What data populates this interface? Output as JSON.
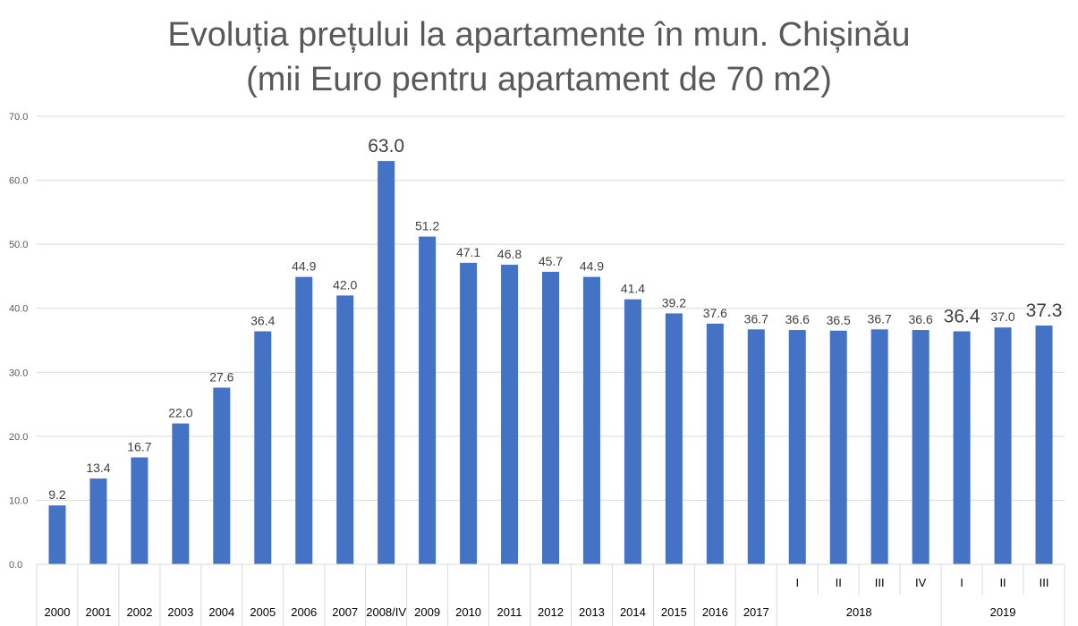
{
  "chart_data": {
    "type": "bar",
    "title_line1": "Evoluția prețului la apartamente în mun. Chișinău",
    "title_line2": "(mii Euro pentru apartament de 70 m2)",
    "ylim": [
      0,
      70
    ],
    "yticks": [
      "0.0",
      "10.0",
      "20.0",
      "30.0",
      "40.0",
      "50.0",
      "60.0",
      "70.0"
    ],
    "grid": true,
    "bar_color": "#4472C4",
    "categories": [
      "2000",
      "2001",
      "2002",
      "2003",
      "2004",
      "2005",
      "2006",
      "2007",
      "2008/IV",
      "2009",
      "2010",
      "2011",
      "2012",
      "2013",
      "2014",
      "2015",
      "2016",
      "2017",
      "I",
      "II",
      "III",
      "IV",
      "I",
      "II",
      "III"
    ],
    "values": [
      9.2,
      13.4,
      16.7,
      22.0,
      27.6,
      36.4,
      44.9,
      42.0,
      63.0,
      51.2,
      47.1,
      46.8,
      45.7,
      44.9,
      41.4,
      39.2,
      37.6,
      36.7,
      36.6,
      36.5,
      36.7,
      36.6,
      36.4,
      37.0,
      37.3
    ],
    "labels": [
      "9.2",
      "13.4",
      "16.7",
      "22.0",
      "27.6",
      "36.4",
      "44.9",
      "42.0",
      "63.0",
      "51.2",
      "47.1",
      "46.8",
      "45.7",
      "44.9",
      "41.4",
      "39.2",
      "37.6",
      "36.7",
      "36.6",
      "36.5",
      "36.7",
      "36.6",
      "36.4",
      "37.0",
      "37.3"
    ],
    "highlighted_labels": [
      8,
      22,
      24
    ],
    "groups": [
      {
        "label": "2018",
        "start": 18,
        "end": 21
      },
      {
        "label": "2019",
        "start": 22,
        "end": 24
      }
    ]
  }
}
